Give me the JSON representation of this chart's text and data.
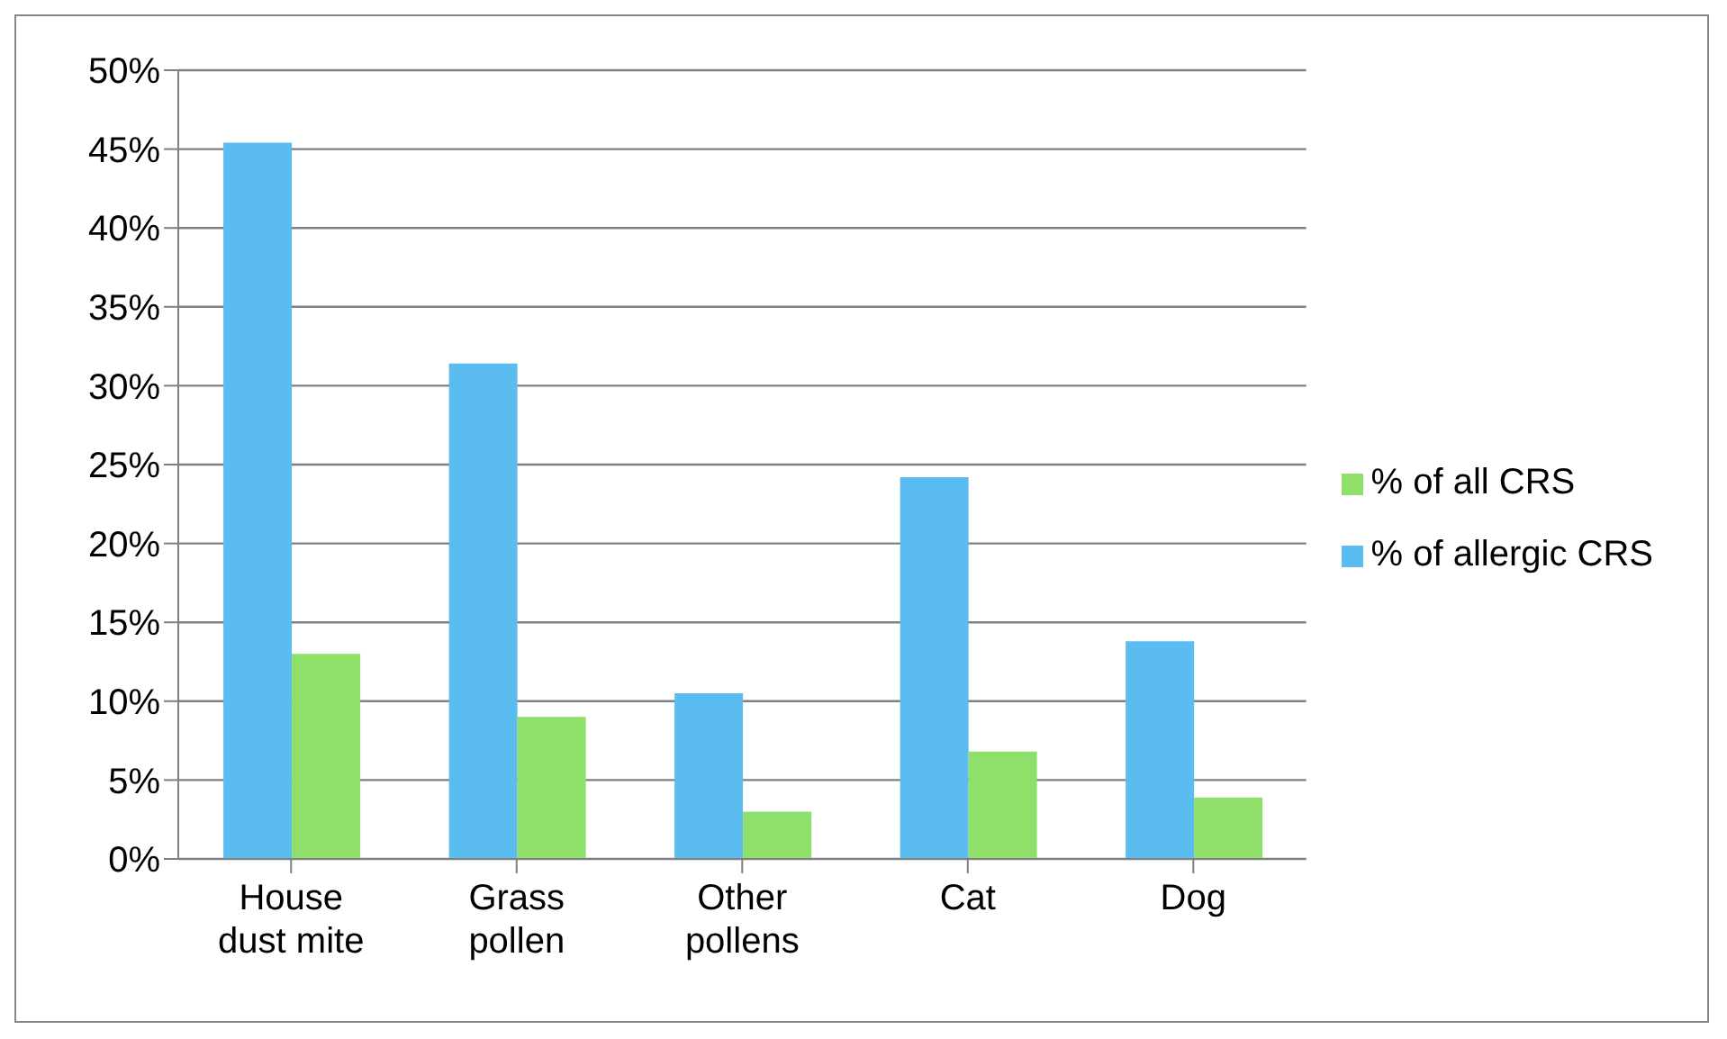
{
  "chart_data": {
    "type": "bar",
    "categories": [
      "House dust mite",
      "Grass pollen",
      "Other pollens",
      "Cat",
      "Dog"
    ],
    "series": [
      {
        "name": "% of allergic CRS",
        "color": "#5bbcf0",
        "values": [
          45.4,
          31.4,
          10.5,
          24.2,
          13.8
        ]
      },
      {
        "name": "% of all CRS",
        "color": "#8ee06a",
        "values": [
          13,
          9,
          3,
          6.8,
          3.9
        ]
      }
    ],
    "ylim": [
      0,
      50
    ],
    "yticks": [
      {
        "value": 0,
        "label": "0%"
      },
      {
        "value": 5,
        "label": "5%"
      },
      {
        "value": 10,
        "label": "10%"
      },
      {
        "value": 15,
        "label": "15%"
      },
      {
        "value": 20,
        "label": "20%"
      },
      {
        "value": 25,
        "label": "25%"
      },
      {
        "value": 30,
        "label": "30%"
      },
      {
        "value": 35,
        "label": "35%"
      },
      {
        "value": 40,
        "label": "40%"
      },
      {
        "value": 45,
        "label": "45%"
      },
      {
        "value": 50,
        "label": "50%"
      }
    ],
    "grid": "y",
    "legend": "right"
  }
}
